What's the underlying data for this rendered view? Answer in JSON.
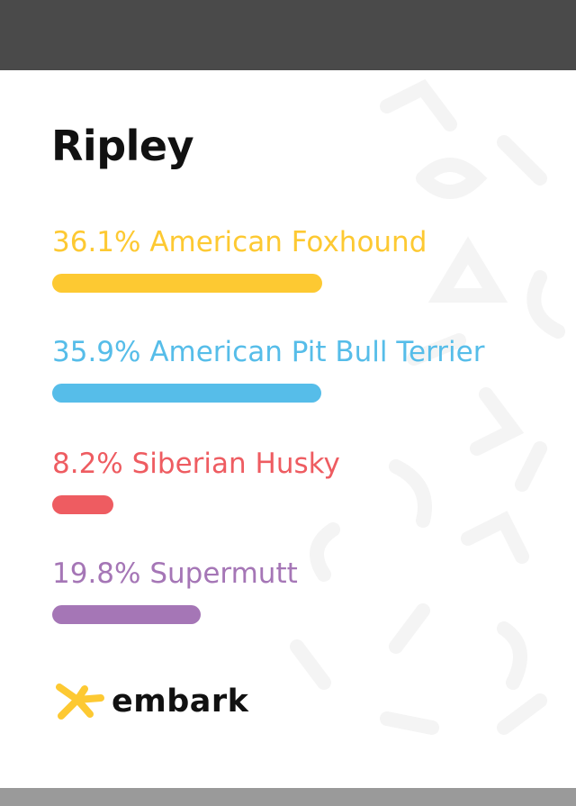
{
  "dog": {
    "name": "Ripley"
  },
  "breeds": [
    {
      "label": "36.1% American Foxhound",
      "percent": 36.1,
      "color": "#fdc932"
    },
    {
      "label": "35.9% American Pit Bull Terrier",
      "percent": 35.9,
      "color": "#56bde9"
    },
    {
      "label": "8.2% Siberian Husky",
      "percent": 8.2,
      "color": "#ee5c61"
    },
    {
      "label": "19.8% Supermutt",
      "percent": 19.8,
      "color": "#a576b6"
    }
  ],
  "brand": {
    "name": "embark",
    "mark_color": "#fdc932",
    "logo_icon": "embark-x-mark-icon"
  },
  "chrome": {
    "top_bar_color": "#4a4a4a",
    "bottom_bar_color": "#9a9a9a"
  }
}
